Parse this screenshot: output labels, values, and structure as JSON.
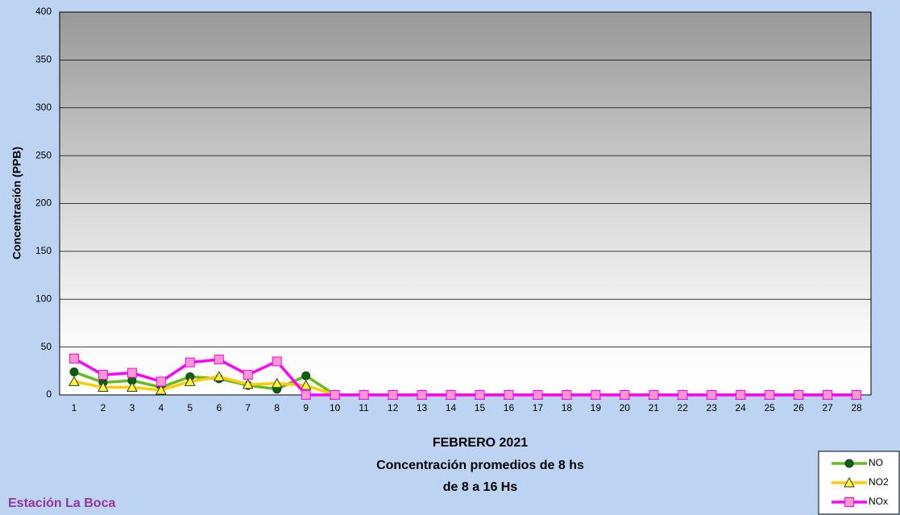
{
  "chart_data": {
    "type": "line",
    "title": "FEBRERO 2021",
    "subtitle": [
      "Concentración promedios de 8 hs",
      "de 8 a 16 Hs"
    ],
    "station": "Estación La Boca",
    "y_label": "Concentración (PPB)",
    "categories": [
      "1",
      "2",
      "3",
      "4",
      "5",
      "6",
      "7",
      "8",
      "9",
      "10",
      "11",
      "12",
      "13",
      "14",
      "15",
      "16",
      "17",
      "18",
      "19",
      "20",
      "21",
      "22",
      "23",
      "24",
      "25",
      "26",
      "27",
      "28"
    ],
    "series": [
      {
        "name": "NO",
        "color": "#66bb22",
        "marker": "circle",
        "marker_color": "#006600",
        "values": [
          24,
          13,
          15,
          8,
          19,
          17,
          10,
          6,
          20,
          0,
          0,
          0,
          0,
          0,
          0,
          0,
          0,
          0,
          0,
          0,
          0,
          0,
          0,
          0,
          0,
          0,
          0,
          0
        ]
      },
      {
        "name": "NO2",
        "color": "#ffcc00",
        "marker": "triangle",
        "marker_color": "#ffff33",
        "values": [
          14,
          8,
          8,
          5,
          14,
          19,
          11,
          12,
          10,
          0,
          0,
          0,
          0,
          0,
          0,
          0,
          0,
          0,
          0,
          0,
          0,
          0,
          0,
          0,
          0,
          0,
          0,
          0
        ]
      },
      {
        "name": "NOx",
        "color": "#ff00ff",
        "marker": "square",
        "marker_color": "#ff99cc",
        "values": [
          38,
          21,
          23,
          14,
          34,
          37,
          21,
          35,
          0,
          0,
          0,
          0,
          0,
          0,
          0,
          0,
          0,
          0,
          0,
          0,
          0,
          0,
          0,
          0,
          0,
          0,
          0,
          0
        ]
      }
    ],
    "ylim": [
      0,
      400
    ],
    "yticks": [
      0,
      50,
      100,
      150,
      200,
      250,
      300,
      350,
      400
    ],
    "grid": true
  }
}
